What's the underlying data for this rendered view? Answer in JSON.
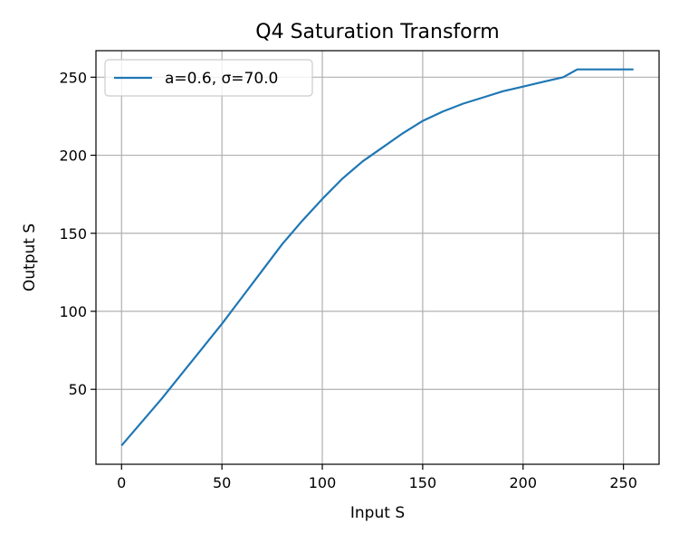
{
  "chart_data": {
    "type": "line",
    "title": "Q4 Saturation Transform",
    "xlabel": "Input S",
    "ylabel": "Output S",
    "xlim": [
      -12.75,
      267.75
    ],
    "ylim": [
      2.0,
      267.0
    ],
    "xticks": [
      0,
      50,
      100,
      150,
      200,
      250
    ],
    "yticks": [
      50,
      100,
      150,
      200,
      250
    ],
    "grid": true,
    "legend_position": "upper-left",
    "series": [
      {
        "name": "a=0.6, σ=70.0",
        "color": "#1f77b4",
        "x": [
          0,
          10,
          20,
          30,
          40,
          50,
          60,
          70,
          80,
          90,
          100,
          110,
          120,
          130,
          140,
          150,
          160,
          170,
          180,
          190,
          200,
          210,
          220,
          227,
          240,
          255
        ],
        "y": [
          14,
          29,
          44,
          60,
          76,
          92,
          109,
          126,
          143,
          158,
          172,
          185,
          196,
          205,
          214,
          222,
          228,
          233,
          237,
          241,
          244,
          247,
          250,
          255,
          255,
          255
        ]
      }
    ]
  }
}
